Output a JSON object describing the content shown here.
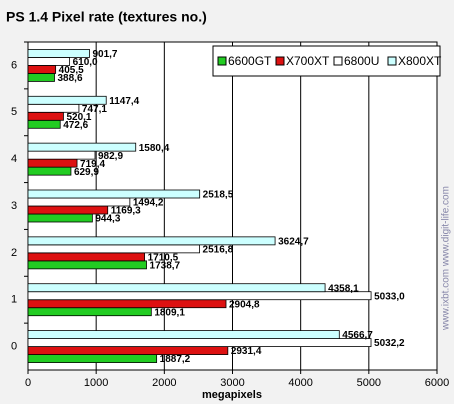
{
  "chart_data": {
    "type": "barh",
    "title": "PS 1.4 Pixel rate (textures no.)",
    "xlabel": "megapixels",
    "watermark": "www.ixbt.com  www.digit-life.com",
    "categories": [
      "0",
      "1",
      "2",
      "3",
      "4",
      "5",
      "6"
    ],
    "series": [
      {
        "name": "6600GT",
        "color": "#22cc22",
        "values": [
          1887.2,
          1809.1,
          1738.7,
          944.3,
          629.9,
          472.6,
          388.6
        ],
        "value_labels": [
          "1887,2",
          "1809,1",
          "1738,7",
          "944,3",
          "629,9",
          "472,6",
          "388,6"
        ]
      },
      {
        "name": "X700XT",
        "color": "#dd1111",
        "values": [
          2931.4,
          2904.8,
          1710.5,
          1169.3,
          719.4,
          520.1,
          405.5
        ],
        "value_labels": [
          "2931,4",
          "2904,8",
          "1710,5",
          "1169,3",
          "719,4",
          "520,1",
          "405,5"
        ]
      },
      {
        "name": "6800U",
        "color": "#ffffff",
        "values": [
          5032.2,
          5033.0,
          2516.8,
          1494.2,
          982.9,
          747.1,
          610.0
        ],
        "value_labels": [
          "5032,2",
          "5033,0",
          "2516,8",
          "1494,2",
          "982,9",
          "747,1",
          "610,0"
        ]
      },
      {
        "name": "X800XT",
        "color": "#ccffff",
        "values": [
          4566.7,
          4358.1,
          3624.7,
          2518.5,
          1580.4,
          1147.4,
          901.7
        ],
        "value_labels": [
          "4566,7",
          "4358,1",
          "3624,7",
          "2518,5",
          "1580,4",
          "1147,4",
          "901,7"
        ]
      }
    ],
    "xlim": [
      0,
      6000
    ],
    "xticks": [
      0,
      1000,
      2000,
      3000,
      4000,
      5000,
      6000
    ],
    "grid": true,
    "legend": "top-right"
  }
}
